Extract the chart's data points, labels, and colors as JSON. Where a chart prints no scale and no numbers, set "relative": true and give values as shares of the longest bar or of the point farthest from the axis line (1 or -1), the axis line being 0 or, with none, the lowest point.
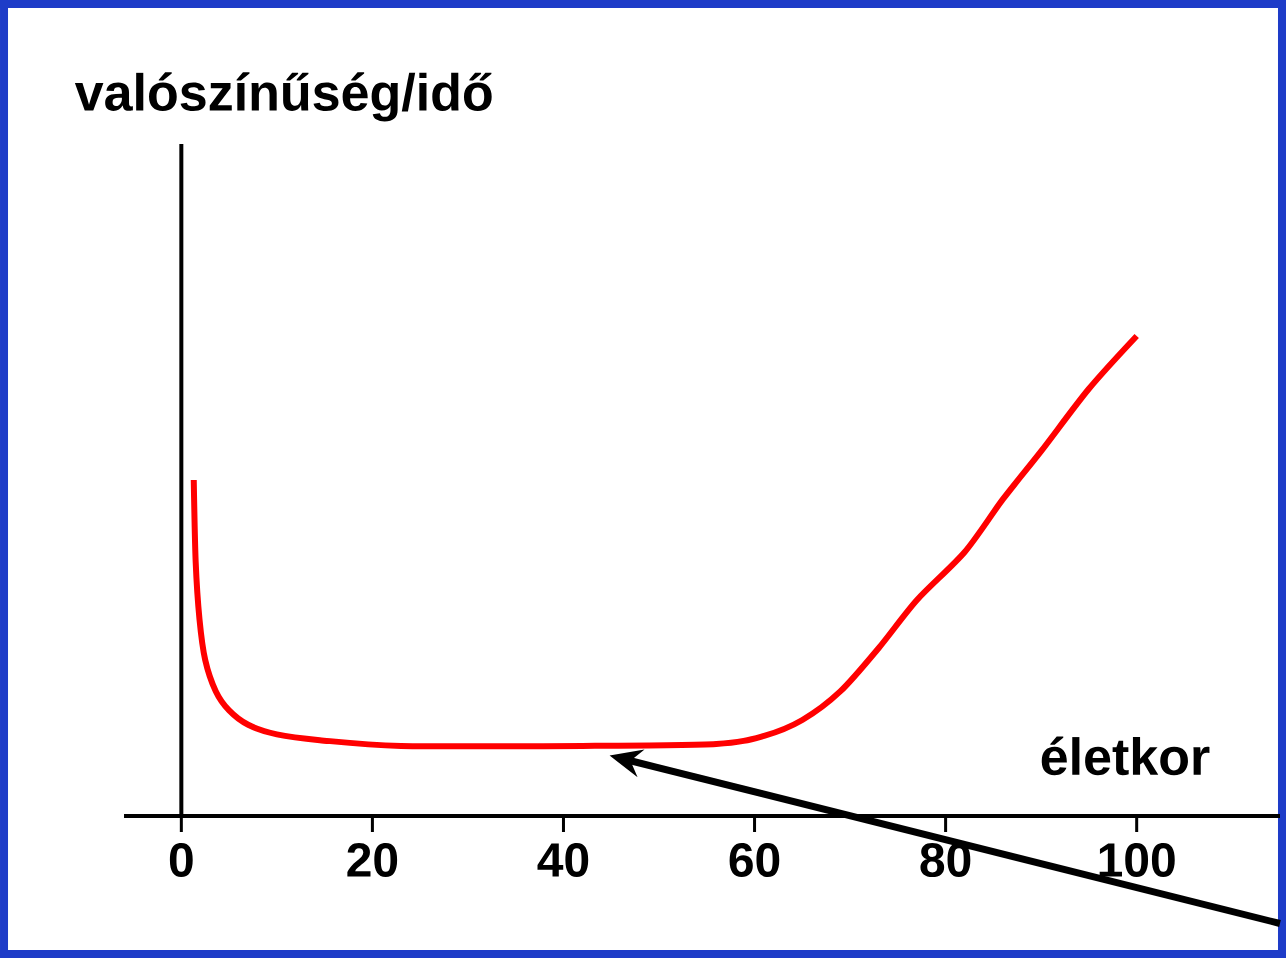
{
  "chart_data": {
    "type": "line",
    "xlabel": "életkor",
    "ylabel": "valószínűség/idő",
    "relative": true,
    "x": [
      1.3,
      1.5,
      1.9,
      2.5,
      3.6,
      5,
      7,
      10,
      14.5,
      23,
      42,
      56,
      61,
      65,
      69,
      73,
      77,
      82,
      86,
      90,
      95,
      100
    ],
    "series": [
      {
        "color": "#ff0000",
        "values": [
          0.7,
          0.53,
          0.41,
          0.325,
          0.26,
          0.22,
          0.19,
          0.17,
          0.158,
          0.146,
          0.146,
          0.15,
          0.167,
          0.2,
          0.26,
          0.35,
          0.45,
          0.55,
          0.66,
          0.76,
          0.89,
          1.0
        ]
      }
    ],
    "xlim": [
      -6,
      115
    ],
    "xticks": [
      0,
      20,
      40,
      60,
      80,
      100
    ]
  }
}
